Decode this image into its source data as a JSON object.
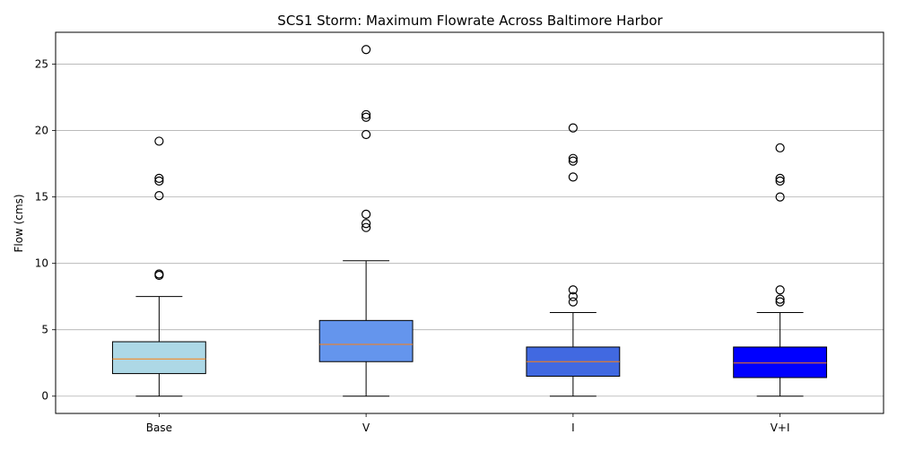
{
  "chart_data": {
    "type": "box",
    "title": "SCS1 Storm: Maximum Flowrate Across Baltimore Harbor",
    "xlabel": "",
    "ylabel": "Flow (cms)",
    "ylim": [
      -1.3,
      27.4
    ],
    "yticks": [
      0,
      5,
      10,
      15,
      20,
      25
    ],
    "grid": "y",
    "categories": [
      "Base",
      "V",
      "I",
      "V+I"
    ],
    "series": [
      {
        "category": "Base",
        "color": "#add8e6",
        "whisker_low": 0,
        "q1": 1.7,
        "median": 2.8,
        "q3": 4.1,
        "whisker_high": 7.5,
        "outliers": [
          9.1,
          9.2,
          15.1,
          16.2,
          16.4,
          19.2
        ]
      },
      {
        "category": "V",
        "color": "#6495ed",
        "whisker_low": 0,
        "q1": 2.6,
        "median": 3.9,
        "q3": 5.7,
        "whisker_high": 10.2,
        "outliers": [
          12.7,
          13.0,
          13.7,
          19.7,
          21.0,
          21.2,
          26.1
        ]
      },
      {
        "category": "I",
        "color": "#4169e1",
        "whisker_low": 0,
        "q1": 1.5,
        "median": 2.6,
        "q3": 3.7,
        "whisker_high": 6.3,
        "outliers": [
          7.1,
          7.5,
          8.0,
          16.5,
          17.7,
          17.9,
          20.2
        ]
      },
      {
        "category": "V+I",
        "color": "#0000ff",
        "whisker_low": 0,
        "q1": 1.4,
        "median": 2.5,
        "q3": 3.7,
        "whisker_high": 6.3,
        "outliers": [
          7.1,
          7.3,
          8.0,
          15.0,
          16.2,
          16.4,
          18.7
        ]
      }
    ],
    "median_color": "#ff7f0e"
  }
}
